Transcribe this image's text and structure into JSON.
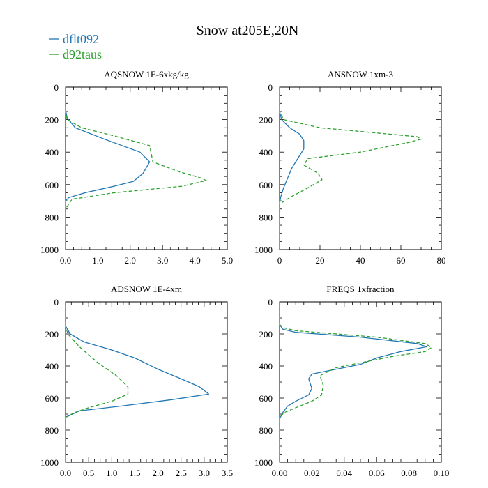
{
  "figure": {
    "title": "Snow at205E,20N",
    "legend": [
      {
        "name": "dflt092",
        "color": "#1f77b4",
        "dash": false
      },
      {
        "name": "d92taus",
        "color": "#2ca02c",
        "dash": true
      }
    ]
  },
  "chart_data": [
    {
      "type": "line",
      "title": "AQSNOW  1E-6xkg/kg",
      "xlim": [
        0,
        5
      ],
      "xticks": [
        "0.0",
        "1.0",
        "2.0",
        "3.0",
        "4.0",
        "5.0"
      ],
      "xtick_values": [
        0,
        1,
        2,
        3,
        4,
        5
      ],
      "ylim": [
        0,
        1000
      ],
      "yticks": [
        "0",
        "200",
        "400",
        "600",
        "800",
        "1000"
      ],
      "y_inverted": true,
      "series": [
        {
          "name": "dflt092",
          "color": "#1f77b4",
          "dash": false,
          "points": [
            [
              0,
              0
            ],
            [
              0,
              140
            ],
            [
              0.05,
              190
            ],
            [
              0.3,
              250
            ],
            [
              1.2,
              320
            ],
            [
              2.3,
              400
            ],
            [
              2.6,
              460
            ],
            [
              2.4,
              530
            ],
            [
              2.1,
              580
            ],
            [
              1.5,
              610
            ],
            [
              0.6,
              650
            ],
            [
              0.1,
              680
            ],
            [
              0,
              700
            ],
            [
              0,
              1000
            ]
          ]
        },
        {
          "name": "d92taus",
          "color": "#2ca02c",
          "dash": true,
          "points": [
            [
              0,
              0
            ],
            [
              0,
              150
            ],
            [
              0.05,
              200
            ],
            [
              0.5,
              250
            ],
            [
              1.5,
              300
            ],
            [
              2.6,
              360
            ],
            [
              2.7,
              460
            ],
            [
              3.5,
              520
            ],
            [
              4.2,
              560
            ],
            [
              4.35,
              575
            ],
            [
              3.6,
              610
            ],
            [
              1.5,
              650
            ],
            [
              0.2,
              690
            ],
            [
              0,
              750
            ],
            [
              0,
              1000
            ]
          ]
        }
      ]
    },
    {
      "type": "line",
      "title": "ANSNOW  1xm-3",
      "xlim": [
        0,
        80
      ],
      "xticks": [
        "0",
        "20",
        "40",
        "60",
        "80"
      ],
      "xtick_values": [
        0,
        20,
        40,
        60,
        80
      ],
      "ylim": [
        0,
        1000
      ],
      "yticks": [
        "0",
        "200",
        "400",
        "600",
        "800",
        "1000"
      ],
      "y_inverted": true,
      "series": [
        {
          "name": "dflt092",
          "color": "#1f77b4",
          "dash": false,
          "points": [
            [
              0,
              0
            ],
            [
              0,
              150
            ],
            [
              1,
              200
            ],
            [
              5,
              250
            ],
            [
              10,
              290
            ],
            [
              12,
              330
            ],
            [
              12,
              380
            ],
            [
              9,
              440
            ],
            [
              6,
              500
            ],
            [
              4,
              560
            ],
            [
              2,
              620
            ],
            [
              0.5,
              680
            ],
            [
              0,
              720
            ],
            [
              0,
              1000
            ]
          ]
        },
        {
          "name": "d92taus",
          "color": "#2ca02c",
          "dash": true,
          "points": [
            [
              0,
              0
            ],
            [
              0,
              150
            ],
            [
              2,
              200
            ],
            [
              20,
              250
            ],
            [
              55,
              290
            ],
            [
              68,
              305
            ],
            [
              70,
              320
            ],
            [
              64,
              340
            ],
            [
              40,
              400
            ],
            [
              14,
              440
            ],
            [
              12,
              480
            ],
            [
              19,
              530
            ],
            [
              21,
              570
            ],
            [
              14,
              620
            ],
            [
              5,
              680
            ],
            [
              0,
              720
            ],
            [
              0,
              1000
            ]
          ]
        }
      ]
    },
    {
      "type": "line",
      "title": "ADSNOW  1E-4xm",
      "xlim": [
        0,
        3.5
      ],
      "xticks": [
        "0.0",
        "0.5",
        "1.0",
        "1.5",
        "2.0",
        "2.5",
        "3.0",
        "3.5"
      ],
      "xtick_values": [
        0,
        0.5,
        1,
        1.5,
        2,
        2.5,
        3,
        3.5
      ],
      "ylim": [
        0,
        1000
      ],
      "yticks": [
        "0",
        "200",
        "400",
        "600",
        "800",
        "1000"
      ],
      "y_inverted": true,
      "series": [
        {
          "name": "dflt092",
          "color": "#1f77b4",
          "dash": false,
          "points": [
            [
              0,
              0
            ],
            [
              0,
              150
            ],
            [
              0.1,
              200
            ],
            [
              0.4,
              250
            ],
            [
              1.0,
              300
            ],
            [
              1.5,
              350
            ],
            [
              2.0,
              420
            ],
            [
              2.5,
              480
            ],
            [
              2.9,
              530
            ],
            [
              3.1,
              575
            ],
            [
              2.3,
              610
            ],
            [
              1.2,
              650
            ],
            [
              0.3,
              680
            ],
            [
              0,
              720
            ],
            [
              0,
              1000
            ]
          ]
        },
        {
          "name": "d92taus",
          "color": "#2ca02c",
          "dash": true,
          "points": [
            [
              0,
              0
            ],
            [
              0,
              150
            ],
            [
              0.05,
              200
            ],
            [
              0.3,
              280
            ],
            [
              0.7,
              380
            ],
            [
              1.1,
              460
            ],
            [
              1.35,
              530
            ],
            [
              1.35,
              575
            ],
            [
              1.0,
              620
            ],
            [
              0.5,
              660
            ],
            [
              0.2,
              690
            ],
            [
              0,
              720
            ],
            [
              0,
              1000
            ]
          ]
        }
      ]
    },
    {
      "type": "line",
      "title": "FREQS  1xfraction",
      "xlim": [
        0,
        0.1
      ],
      "xticks": [
        "0.00",
        "0.02",
        "0.04",
        "0.06",
        "0.08",
        "0.10"
      ],
      "xtick_values": [
        0,
        0.02,
        0.04,
        0.06,
        0.08,
        0.1
      ],
      "ylim": [
        0,
        1000
      ],
      "yticks": [
        "0",
        "200",
        "400",
        "600",
        "800",
        "1000"
      ],
      "y_inverted": true,
      "series": [
        {
          "name": "dflt092",
          "color": "#1f77b4",
          "dash": false,
          "points": [
            [
              0,
              0
            ],
            [
              0,
              140
            ],
            [
              0.002,
              170
            ],
            [
              0.01,
              190
            ],
            [
              0.05,
              220
            ],
            [
              0.085,
              260
            ],
            [
              0.091,
              280
            ],
            [
              0.075,
              310
            ],
            [
              0.06,
              350
            ],
            [
              0.05,
              390
            ],
            [
              0.035,
              420
            ],
            [
              0.02,
              450
            ],
            [
              0.018,
              480
            ],
            [
              0.02,
              540
            ],
            [
              0.018,
              580
            ],
            [
              0.01,
              620
            ],
            [
              0.005,
              650
            ],
            [
              0.002,
              690
            ],
            [
              0,
              730
            ],
            [
              0,
              1000
            ]
          ]
        },
        {
          "name": "d92taus",
          "color": "#2ca02c",
          "dash": true,
          "points": [
            [
              0,
              0
            ],
            [
              0,
              140
            ],
            [
              0.002,
              160
            ],
            [
              0.01,
              180
            ],
            [
              0.06,
              220
            ],
            [
              0.09,
              260
            ],
            [
              0.094,
              285
            ],
            [
              0.09,
              310
            ],
            [
              0.07,
              340
            ],
            [
              0.05,
              380
            ],
            [
              0.035,
              410
            ],
            [
              0.025,
              460
            ],
            [
              0.027,
              520
            ],
            [
              0.026,
              580
            ],
            [
              0.02,
              620
            ],
            [
              0.01,
              660
            ],
            [
              0.003,
              690
            ],
            [
              0,
              720
            ],
            [
              0,
              1000
            ]
          ]
        }
      ]
    }
  ]
}
